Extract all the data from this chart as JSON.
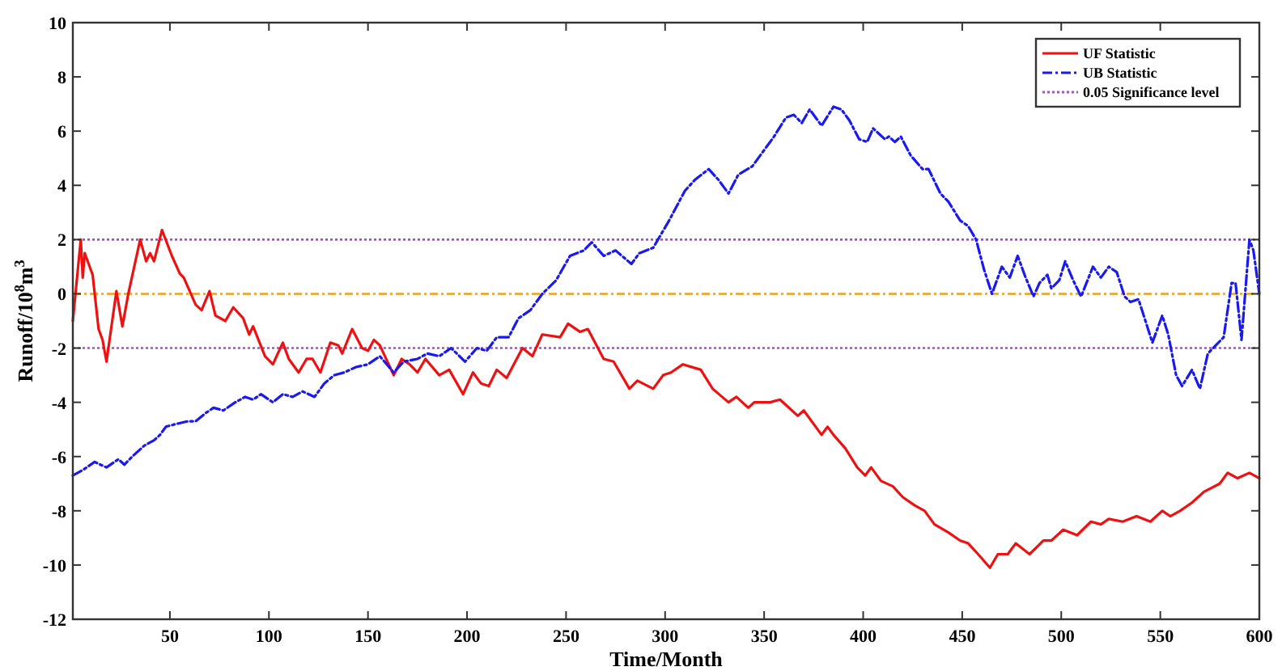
{
  "chart_data": {
    "type": "line",
    "xlabel": "Time/Month",
    "ylabel": "Runoff/10$^{8}$m$^{3}$",
    "xlim": [
      1,
      600
    ],
    "xticks": [
      50,
      100,
      150,
      200,
      250,
      300,
      350,
      400,
      450,
      500,
      550,
      600
    ],
    "ylim": [
      -12,
      10
    ],
    "yticks": [
      -12,
      -10,
      -8,
      -6,
      -4,
      -2,
      0,
      2,
      4,
      6,
      8,
      10
    ],
    "legend": "top right",
    "grid": false,
    "series": [
      {
        "name": "UF Statistic",
        "color": "#ee1111",
        "line_style": "solid",
        "x": [
          1,
          5,
          6,
          7,
          9,
          11,
          14,
          16,
          18,
          23,
          26,
          29,
          35,
          38,
          40,
          42,
          46,
          51,
          55,
          57,
          63,
          66,
          70,
          73,
          78,
          82,
          87,
          90,
          92,
          98,
          102,
          107,
          110,
          115,
          119,
          122,
          126,
          131,
          135,
          137,
          142,
          147,
          150,
          153,
          156,
          163,
          167,
          171,
          175,
          179,
          186,
          191,
          198,
          203,
          207,
          211,
          215,
          220,
          228,
          233,
          238,
          247,
          251,
          257,
          261,
          269,
          274,
          282,
          286,
          294,
          299,
          303,
          309,
          318,
          324,
          332,
          336,
          342,
          345,
          353,
          358,
          367,
          370,
          379,
          382,
          385,
          391,
          397,
          401,
          404,
          409,
          415,
          420,
          426,
          431,
          436,
          443,
          449,
          453,
          458,
          464,
          468,
          473,
          477,
          484,
          491,
          495,
          501,
          508,
          515,
          520,
          524,
          531,
          538,
          545,
          551,
          555,
          560,
          566,
          572,
          580,
          584,
          589,
          595,
          600
        ],
        "values": [
          -1.0,
          2.0,
          0.6,
          1.5,
          1.1,
          0.7,
          -1.3,
          -1.7,
          -2.5,
          0.1,
          -1.2,
          0,
          2.0,
          1.2,
          1.5,
          1.2,
          2.35,
          1.4,
          0.75,
          0.6,
          -0.4,
          -0.6,
          0.1,
          -0.8,
          -1.0,
          -0.5,
          -0.9,
          -1.5,
          -1.2,
          -2.3,
          -2.6,
          -1.8,
          -2.4,
          -2.9,
          -2.4,
          -2.4,
          -2.9,
          -1.8,
          -1.9,
          -2.2,
          -1.3,
          -2.0,
          -2.1,
          -1.7,
          -1.9,
          -3.0,
          -2.4,
          -2.6,
          -2.9,
          -2.4,
          -3.0,
          -2.8,
          -3.7,
          -2.9,
          -3.3,
          -3.4,
          -2.8,
          -3.1,
          -2.0,
          -2.3,
          -1.5,
          -1.6,
          -1.1,
          -1.4,
          -1.3,
          -2.4,
          -2.5,
          -3.5,
          -3.2,
          -3.5,
          -3.0,
          -2.9,
          -2.6,
          -2.8,
          -3.5,
          -4.0,
          -3.8,
          -4.2,
          -4.0,
          -4.0,
          -3.9,
          -4.5,
          -4.3,
          -5.2,
          -4.9,
          -5.2,
          -5.7,
          -6.4,
          -6.7,
          -6.4,
          -6.9,
          -7.1,
          -7.5,
          -7.8,
          -8.0,
          -8.5,
          -8.8,
          -9.1,
          -9.2,
          -9.6,
          -10.1,
          -9.6,
          -9.6,
          -9.2,
          -9.6,
          -9.1,
          -9.1,
          -8.7,
          -8.9,
          -8.4,
          -8.5,
          -8.3,
          -8.4,
          -8.2,
          -8.4,
          -8.0,
          -8.2,
          -8.0,
          -7.7,
          -7.3,
          -7.0,
          -6.6,
          -6.8,
          -6.6,
          -6.8
        ]
      },
      {
        "name": "UB Statistic",
        "color": "#1a1aee",
        "line_style": "dashed",
        "x": [
          1,
          6,
          12,
          18,
          24,
          27,
          31,
          37,
          42,
          45,
          48,
          53,
          59,
          63,
          68,
          72,
          77,
          83,
          88,
          92,
          96,
          102,
          107,
          112,
          117,
          123,
          128,
          133,
          138,
          144,
          150,
          156,
          163,
          168,
          175,
          180,
          186,
          192,
          199,
          205,
          210,
          215,
          221,
          226,
          232,
          238,
          245,
          252,
          259,
          263,
          269,
          275,
          283,
          287,
          294,
          302,
          310,
          315,
          322,
          327,
          332,
          337,
          344,
          348,
          355,
          361,
          365,
          369,
          373,
          379,
          385,
          389,
          393,
          398,
          402,
          405,
          411,
          413,
          416,
          419,
          424,
          430,
          433,
          439,
          443,
          449,
          453,
          457,
          461,
          465,
          470,
          474,
          478,
          482,
          486,
          489,
          493,
          495,
          499,
          502,
          506,
          510,
          516,
          520,
          524,
          528,
          532,
          535,
          539,
          546,
          551,
          554,
          558,
          561,
          566,
          570,
          574,
          578,
          582,
          586,
          588,
          591,
          595,
          597,
          600
        ],
        "values": [
          -6.7,
          -6.5,
          -6.2,
          -6.4,
          -6.1,
          -6.3,
          -6.0,
          -5.6,
          -5.4,
          -5.2,
          -4.9,
          -4.8,
          -4.7,
          -4.7,
          -4.4,
          -4.2,
          -4.3,
          -4.0,
          -3.8,
          -3.9,
          -3.7,
          -4.0,
          -3.7,
          -3.8,
          -3.6,
          -3.8,
          -3.3,
          -3.0,
          -2.9,
          -2.7,
          -2.6,
          -2.3,
          -2.9,
          -2.5,
          -2.4,
          -2.2,
          -2.3,
          -2.0,
          -2.5,
          -2.0,
          -2.1,
          -1.6,
          -1.6,
          -0.9,
          -0.6,
          0,
          0.5,
          1.4,
          1.6,
          1.9,
          1.4,
          1.6,
          1.1,
          1.5,
          1.7,
          2.7,
          3.8,
          4.2,
          4.6,
          4.2,
          3.7,
          4.4,
          4.7,
          5.1,
          5.8,
          6.5,
          6.6,
          6.3,
          6.8,
          6.2,
          6.9,
          6.8,
          6.4,
          5.7,
          5.6,
          6.1,
          5.7,
          5.8,
          5.6,
          5.8,
          5.1,
          4.6,
          4.6,
          3.7,
          3.4,
          2.7,
          2.5,
          2.0,
          0.9,
          0,
          1.0,
          0.6,
          1.4,
          0.6,
          -0.1,
          0.4,
          0.7,
          0.2,
          0.5,
          1.2,
          0.5,
          -0.1,
          1.0,
          0.6,
          1.0,
          0.8,
          -0.1,
          -0.3,
          -0.2,
          -1.8,
          -0.8,
          -1.5,
          -3.0,
          -3.4,
          -2.8,
          -3.5,
          -2.2,
          -1.9,
          -1.6,
          0.4,
          0.4,
          -1.7,
          2.0,
          1.6,
          0
        ]
      }
    ],
    "ref_lines": [
      {
        "axis": "y",
        "value": 2,
        "label": "0.05 Significance level",
        "color": "#9b59b6",
        "line_style": "dotted"
      },
      {
        "axis": "y",
        "value": -2,
        "color": "#9b59b6",
        "line_style": "dotted"
      },
      {
        "axis": "y",
        "value": 0,
        "color": "#e8a317",
        "line_style": "dashdot"
      }
    ]
  }
}
